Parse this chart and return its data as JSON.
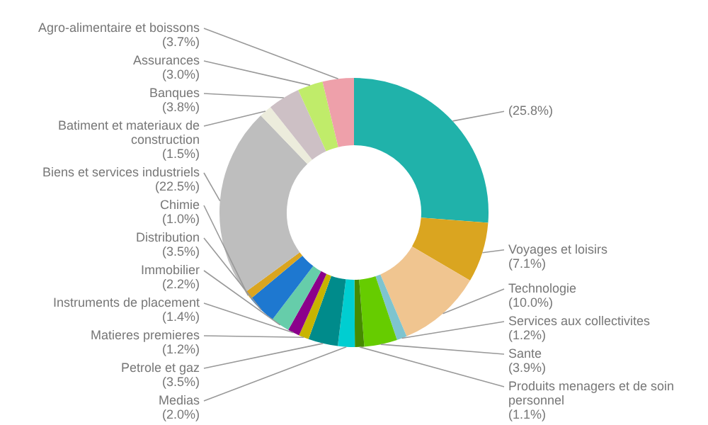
{
  "chart_data": {
    "type": "donut",
    "categories": [
      null,
      "Voyages et loisirs",
      "Technologie",
      "Services aux collectivites",
      "Sante",
      "Produits menagers et de soin personnel",
      "Medias",
      "Petrole et gaz",
      "Matieres premieres",
      "Instruments de placement",
      "Immobilier",
      "Distribution",
      "Chimie",
      "Biens et services industriels",
      "Batiment et materiaux de construction",
      "Banques",
      "Assurances",
      "Agro-alimentaire et boissons"
    ],
    "values": [
      25.8,
      7.1,
      10.0,
      1.2,
      3.9,
      1.1,
      2.0,
      3.5,
      1.2,
      1.4,
      2.2,
      3.5,
      1.0,
      22.5,
      1.5,
      3.8,
      3.0,
      3.7
    ],
    "value_labels": [
      "(25.8%)",
      "(7.1%)",
      "(10.0%)",
      "(1.2%)",
      "(3.9%)",
      "(1.1%)",
      "(2.0%)",
      "(3.5%)",
      "(1.2%)",
      "(1.4%)",
      "(2.2%)",
      "(3.5%)",
      "(1.0%)",
      "(22.5%)",
      "(1.5%)",
      "(3.8%)",
      "(3.0%)",
      "(3.7%)"
    ],
    "colors": [
      "#20b2aa",
      "#daa520",
      "#f0c590",
      "#7ec4cf",
      "#66cc00",
      "#458b00",
      "#00ced1",
      "#008b8b",
      "#c8b400",
      "#8b008b",
      "#66cdaa",
      "#1e78d0",
      "#daa520",
      "#bebebe",
      "#ececdc",
      "#cdc0c5",
      "#c0ec6a",
      "#eea0aa"
    ],
    "legend": false
  }
}
